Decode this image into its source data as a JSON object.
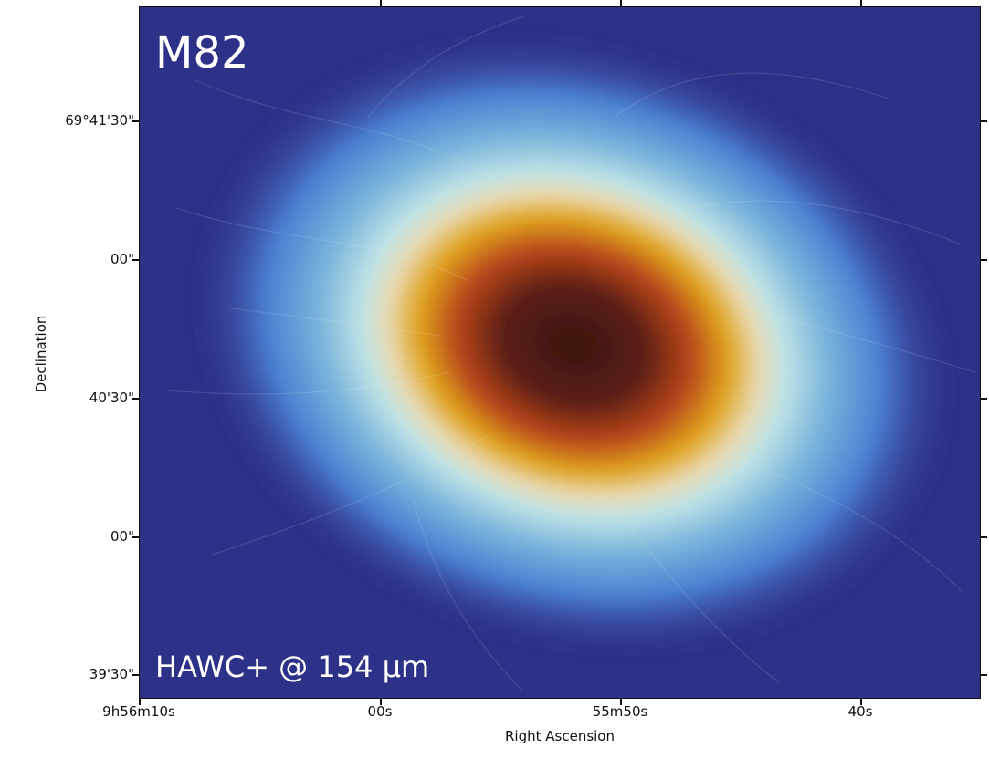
{
  "image": {
    "title": "M82",
    "instrument_label": "HAWC+ @ 154 μm",
    "subject": "M82 galaxy far-infrared intensity map with magnetic field streamlines",
    "colors": {
      "background": "#2e3188",
      "low": "#4a7fd1",
      "mid": "#bfe3e6",
      "warm": "#e0a21a",
      "hot": "#b5451b",
      "core": "#3a1410"
    }
  },
  "axes": {
    "xlabel": "Right Ascension",
    "ylabel": "Declination",
    "xticks": [
      "9h56m10s",
      "00s",
      "55m50s",
      "40s"
    ],
    "yticks": [
      "69°41'30\"",
      "00\"",
      "40'30\"",
      "00\"",
      "39'30\""
    ]
  }
}
